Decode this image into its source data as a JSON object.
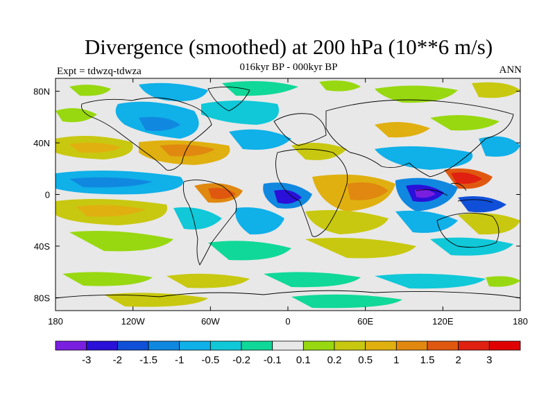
{
  "header": {
    "title": "Divergence (smoothed) at 200 hPa (10**6 m/s)",
    "subtitle": "016kyr BP - 000kyr BP",
    "left_label": "Expt = tdwzq-tdwza",
    "right_label": "ANN"
  },
  "map": {
    "projection": "cylindrical-equidistant",
    "lon_range": [
      -180,
      180
    ],
    "lat_range": [
      -90,
      90
    ],
    "x_ticks": [
      "180",
      "120W",
      "60W",
      "0",
      "60E",
      "120E",
      "180"
    ],
    "y_ticks": [
      "80N",
      "40N",
      "0",
      "40S",
      "80S"
    ],
    "ocean_background": "#e8e8e8"
  },
  "colorbar": {
    "labels": [
      "-3",
      "-2",
      "-1.5",
      "-1",
      "-0.5",
      "-0.2",
      "-0.1",
      "0.1",
      "0.2",
      "0.5",
      "1",
      "1.5",
      "2",
      "3"
    ],
    "colors": [
      "#7a1fe0",
      "#2a10d8",
      "#1050d8",
      "#1088e0",
      "#10b0e8",
      "#10c8d8",
      "#10d898",
      "#e8e8e8",
      "#98d810",
      "#c8c810",
      "#e0b010",
      "#e08810",
      "#e05810",
      "#e02010",
      "#e00000"
    ]
  }
}
